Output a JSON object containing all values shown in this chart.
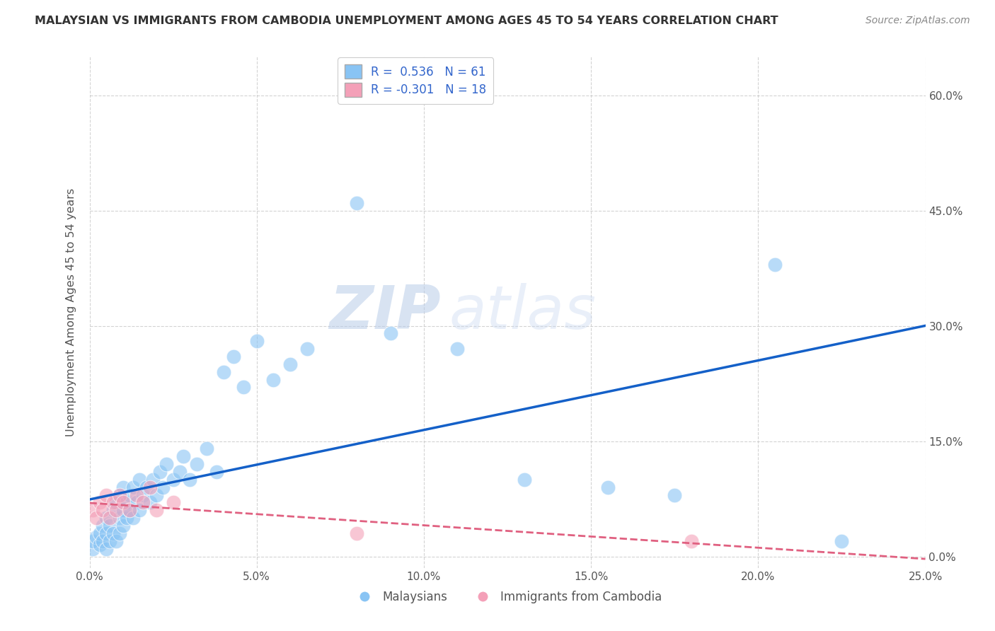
{
  "title": "MALAYSIAN VS IMMIGRANTS FROM CAMBODIA UNEMPLOYMENT AMONG AGES 45 TO 54 YEARS CORRELATION CHART",
  "source": "Source: ZipAtlas.com",
  "ylabel": "Unemployment Among Ages 45 to 54 years",
  "xlim": [
    0.0,
    0.25
  ],
  "ylim": [
    -0.015,
    0.65
  ],
  "yticks": [
    0.0,
    0.15,
    0.3,
    0.45,
    0.6
  ],
  "xticks": [
    0.0,
    0.05,
    0.1,
    0.15,
    0.2,
    0.25
  ],
  "legend_R1": "R =  0.536",
  "legend_N1": "N = 61",
  "legend_R2": "R = -0.301",
  "legend_N2": "N = 18",
  "series1_label": "Malaysians",
  "series2_label": "Immigrants from Cambodia",
  "series1_color": "#89c4f4",
  "series2_color": "#f4a0b8",
  "series1_line_color": "#1460c8",
  "series2_line_color": "#e06080",
  "background_color": "#ffffff",
  "grid_color": "#c8c8c8",
  "watermark_zip": "ZIP",
  "watermark_atlas": "atlas",
  "malaysians_x": [
    0.001,
    0.001,
    0.002,
    0.003,
    0.003,
    0.004,
    0.004,
    0.005,
    0.005,
    0.005,
    0.006,
    0.006,
    0.007,
    0.007,
    0.008,
    0.008,
    0.009,
    0.009,
    0.009,
    0.01,
    0.01,
    0.01,
    0.011,
    0.011,
    0.012,
    0.012,
    0.013,
    0.013,
    0.014,
    0.015,
    0.015,
    0.016,
    0.017,
    0.018,
    0.019,
    0.02,
    0.021,
    0.022,
    0.023,
    0.025,
    0.027,
    0.028,
    0.03,
    0.032,
    0.035,
    0.038,
    0.04,
    0.043,
    0.046,
    0.05,
    0.055,
    0.06,
    0.065,
    0.08,
    0.09,
    0.11,
    0.13,
    0.155,
    0.175,
    0.205,
    0.225
  ],
  "malaysians_y": [
    0.01,
    0.02,
    0.025,
    0.015,
    0.03,
    0.02,
    0.04,
    0.01,
    0.03,
    0.05,
    0.02,
    0.04,
    0.03,
    0.06,
    0.02,
    0.07,
    0.03,
    0.05,
    0.08,
    0.04,
    0.06,
    0.09,
    0.05,
    0.07,
    0.06,
    0.08,
    0.05,
    0.09,
    0.07,
    0.06,
    0.1,
    0.08,
    0.09,
    0.07,
    0.1,
    0.08,
    0.11,
    0.09,
    0.12,
    0.1,
    0.11,
    0.13,
    0.1,
    0.12,
    0.14,
    0.11,
    0.24,
    0.26,
    0.22,
    0.28,
    0.23,
    0.25,
    0.27,
    0.46,
    0.29,
    0.27,
    0.1,
    0.09,
    0.08,
    0.38,
    0.02
  ],
  "cambodia_x": [
    0.001,
    0.002,
    0.003,
    0.004,
    0.005,
    0.006,
    0.007,
    0.008,
    0.009,
    0.01,
    0.012,
    0.014,
    0.016,
    0.018,
    0.02,
    0.025,
    0.08,
    0.18
  ],
  "cambodia_y": [
    0.06,
    0.05,
    0.07,
    0.06,
    0.08,
    0.05,
    0.07,
    0.06,
    0.08,
    0.07,
    0.06,
    0.08,
    0.07,
    0.09,
    0.06,
    0.07,
    0.03,
    0.02
  ]
}
